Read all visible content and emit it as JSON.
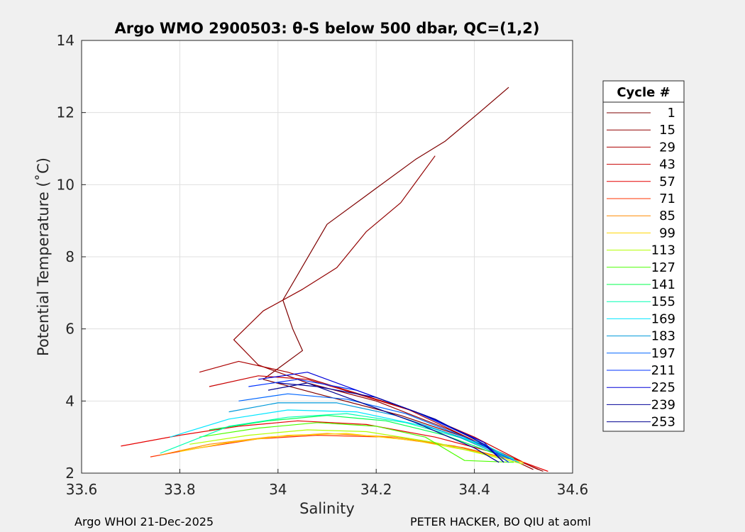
{
  "chart_data": {
    "type": "line",
    "title": "Argo WMO 2900503: θ-S below 500 dbar,  QC=(1,2)",
    "xlabel": "Salinity",
    "ylabel": "Potential Temperature (˚C)",
    "xlim": [
      33.6,
      34.6
    ],
    "ylim": [
      2,
      14
    ],
    "xticks": [
      "33.6",
      "33.8",
      "34",
      "34.2",
      "34.4",
      "34.6"
    ],
    "yticks": [
      "2",
      "4",
      "6",
      "8",
      "10",
      "12",
      "14"
    ],
    "xtick_values": [
      33.6,
      33.8,
      34.0,
      34.2,
      34.4,
      34.6
    ],
    "ytick_values": [
      2,
      4,
      6,
      8,
      10,
      12,
      14
    ],
    "grid": true,
    "legend_position": "right",
    "legend_title": "Cycle #",
    "series": [
      {
        "name": "1",
        "color": "#7f0000",
        "x": [
          34.47,
          34.41,
          34.34,
          34.28,
          34.2,
          34.1,
          34.04,
          34.01,
          34.03,
          34.05,
          34.0,
          33.97,
          34.08,
          34.25,
          34.38,
          34.54
        ],
        "y": [
          12.7,
          12.0,
          11.2,
          10.7,
          9.9,
          8.9,
          7.5,
          6.8,
          6.0,
          5.4,
          4.9,
          4.6,
          4.2,
          3.6,
          3.0,
          2.05
        ]
      },
      {
        "name": "15",
        "color": "#920000",
        "x": [
          34.32,
          34.25,
          34.18,
          34.12,
          34.05,
          33.97,
          33.91,
          33.96,
          34.06,
          34.2,
          34.35,
          34.52
        ],
        "y": [
          10.8,
          9.5,
          8.7,
          7.7,
          7.1,
          6.5,
          5.7,
          5.0,
          4.5,
          4.0,
          3.2,
          2.1
        ]
      },
      {
        "name": "29",
        "color": "#ac0000",
        "x": [
          33.84,
          33.92,
          34.02,
          34.14,
          34.26,
          34.4,
          34.53
        ],
        "y": [
          4.8,
          5.1,
          4.8,
          4.3,
          3.8,
          2.9,
          2.1
        ]
      },
      {
        "name": "43",
        "color": "#c80000",
        "x": [
          33.86,
          33.96,
          34.06,
          34.16,
          34.28,
          34.4,
          34.5
        ],
        "y": [
          4.4,
          4.7,
          4.6,
          4.2,
          3.7,
          3.0,
          2.3
        ]
      },
      {
        "name": "57",
        "color": "#e60000",
        "x": [
          33.68,
          33.8,
          33.92,
          34.04,
          34.18,
          34.32,
          34.46,
          34.55
        ],
        "y": [
          2.75,
          3.05,
          3.3,
          3.45,
          3.35,
          3.0,
          2.5,
          2.05
        ]
      },
      {
        "name": "71",
        "color": "#ff3300",
        "x": [
          33.74,
          33.84,
          33.96,
          34.08,
          34.22,
          34.36,
          34.5
        ],
        "y": [
          2.45,
          2.7,
          2.95,
          3.05,
          3.0,
          2.75,
          2.3
        ]
      },
      {
        "name": "85",
        "color": "#ff8800",
        "x": [
          33.76,
          33.86,
          33.98,
          34.1,
          34.24,
          34.38,
          34.5
        ],
        "y": [
          2.5,
          2.8,
          3.0,
          3.1,
          3.0,
          2.7,
          2.3
        ]
      },
      {
        "name": "99",
        "color": "#ffd400",
        "x": [
          33.8,
          33.9,
          34.02,
          34.14,
          34.28,
          34.4,
          34.5
        ],
        "y": [
          2.6,
          2.85,
          3.05,
          3.1,
          2.9,
          2.6,
          2.3
        ]
      },
      {
        "name": "113",
        "color": "#b2ff00",
        "x": [
          33.82,
          33.94,
          34.06,
          34.18,
          34.32,
          34.44,
          34.5
        ],
        "y": [
          2.8,
          3.05,
          3.2,
          3.15,
          2.85,
          2.45,
          2.25
        ]
      },
      {
        "name": "127",
        "color": "#4dff00",
        "x": [
          33.84,
          33.96,
          34.08,
          34.2,
          34.3,
          34.38,
          34.48
        ],
        "y": [
          3.0,
          3.25,
          3.4,
          3.3,
          3.0,
          2.35,
          2.3
        ]
      },
      {
        "name": "141",
        "color": "#00ff4d",
        "x": [
          33.86,
          33.98,
          34.1,
          34.22,
          34.34,
          34.46
        ],
        "y": [
          3.2,
          3.45,
          3.6,
          3.45,
          3.05,
          2.45
        ]
      },
      {
        "name": "155",
        "color": "#00ffb2",
        "x": [
          33.76,
          33.9,
          34.02,
          34.14,
          34.26,
          34.38,
          34.48
        ],
        "y": [
          2.55,
          3.3,
          3.55,
          3.65,
          3.4,
          2.95,
          2.4
        ]
      },
      {
        "name": "169",
        "color": "#00e6ff",
        "x": [
          33.78,
          33.9,
          34.02,
          34.16,
          34.3,
          34.42,
          34.49
        ],
        "y": [
          3.0,
          3.5,
          3.75,
          3.7,
          3.3,
          2.8,
          2.3
        ]
      },
      {
        "name": "183",
        "color": "#0099d9",
        "x": [
          33.9,
          34.0,
          34.12,
          34.24,
          34.36,
          34.47
        ],
        "y": [
          3.7,
          3.95,
          3.95,
          3.6,
          3.05,
          2.4
        ]
      },
      {
        "name": "197",
        "color": "#0066ff",
        "x": [
          33.92,
          34.02,
          34.14,
          34.26,
          34.38,
          34.48
        ],
        "y": [
          4.0,
          4.2,
          4.05,
          3.65,
          3.0,
          2.35
        ]
      },
      {
        "name": "211",
        "color": "#0033ff",
        "x": [
          33.94,
          34.04,
          34.16,
          34.28,
          34.4,
          34.47
        ],
        "y": [
          4.4,
          4.6,
          4.3,
          3.7,
          2.95,
          2.3
        ]
      },
      {
        "name": "225",
        "color": "#0000d9",
        "x": [
          33.96,
          34.06,
          34.18,
          34.3,
          34.42,
          34.46
        ],
        "y": [
          4.6,
          4.8,
          4.2,
          3.6,
          2.85,
          2.3
        ]
      },
      {
        "name": "239",
        "color": "#000099",
        "x": [
          34.0,
          34.08,
          34.2,
          34.32,
          34.42,
          34.46
        ],
        "y": [
          4.5,
          4.4,
          4.1,
          3.5,
          2.8,
          2.3
        ]
      },
      {
        "name": "253",
        "color": "#00008f",
        "x": [
          33.98,
          34.06,
          34.16,
          34.28,
          34.4,
          34.45
        ],
        "y": [
          4.3,
          4.5,
          4.0,
          3.4,
          2.7,
          2.3
        ]
      }
    ]
  },
  "footer": {
    "left": "Argo WHOI 21-Dec-2025",
    "right": "PETER HACKER, BO QIU at aoml"
  }
}
